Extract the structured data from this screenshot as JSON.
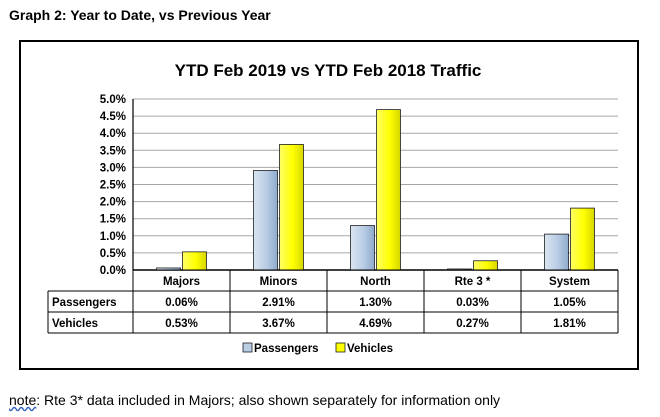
{
  "heading": "Graph 2: Year to Date, vs Previous Year",
  "note": {
    "prefix": "note",
    "text": ": Rte 3* data included in Majors; also shown separately for information only"
  },
  "chart_data": {
    "type": "bar",
    "title": "YTD Feb 2019 vs YTD Feb 2018 Traffic",
    "categories": [
      "Majors",
      "Minors",
      "North",
      "Rte 3 *",
      "System"
    ],
    "y_ticks": [
      "0.0%",
      "0.5%",
      "1.0%",
      "1.5%",
      "2.0%",
      "2.5%",
      "3.0%",
      "3.5%",
      "4.0%",
      "4.5%",
      "5.0%"
    ],
    "ylim": [
      0,
      5
    ],
    "legend_position": "bottom",
    "series": [
      {
        "name": "Passengers",
        "color": "#b8cce4",
        "values": [
          0.06,
          2.91,
          1.3,
          0.03,
          1.05
        ],
        "labels": [
          "0.06%",
          "2.91%",
          "1.30%",
          "0.03%",
          "1.05%"
        ]
      },
      {
        "name": "Vehicles",
        "color": "#ffff00",
        "values": [
          0.53,
          3.67,
          4.69,
          0.27,
          1.81
        ],
        "labels": [
          "0.53%",
          "3.67%",
          "4.69%",
          "0.27%",
          "1.81%"
        ]
      }
    ]
  }
}
